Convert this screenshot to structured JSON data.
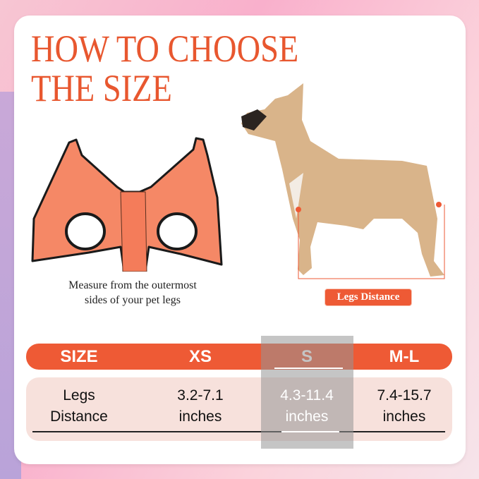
{
  "title": {
    "line1": "HOW TO CHOOSE",
    "line2": "THE SIZE"
  },
  "vest": {
    "caption_line1": "Measure from the outermost",
    "caption_line2": "sides of your pet legs"
  },
  "dog": {
    "measure_label": "Legs Distance"
  },
  "table": {
    "headers": [
      "SIZE",
      "XS",
      "S",
      "M-L"
    ],
    "row": {
      "label_line1": "Legs",
      "label_line2": "Distance",
      "values": [
        {
          "range": "3.2-7.1",
          "unit": "inches"
        },
        {
          "range": "4.3-11.4",
          "unit": "inches"
        },
        {
          "range": "7.4-15.7",
          "unit": "inches"
        }
      ]
    },
    "highlighted": "S"
  },
  "colors": {
    "accent": "#ee5a35",
    "row_bg": "#f7e1dc"
  }
}
